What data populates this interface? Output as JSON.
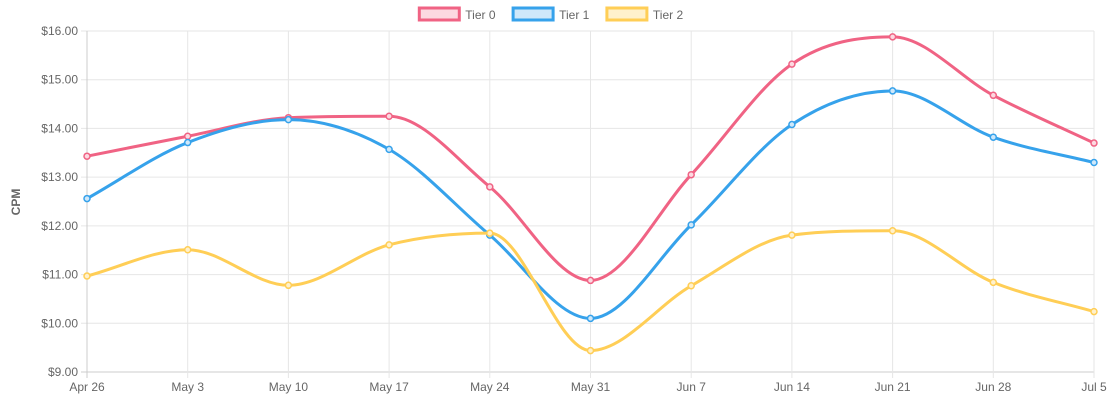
{
  "chart_data": {
    "type": "line",
    "ylabel": "CPM",
    "xlabel": "",
    "ylim": [
      9,
      16
    ],
    "y_step": 1,
    "y_prefix": "$",
    "y_decimals": 2,
    "grid": true,
    "legend_position": "top",
    "categories": [
      "Apr 26",
      "May 3",
      "May 10",
      "May 17",
      "May 24",
      "May 31",
      "Jun 7",
      "Jun 14",
      "Jun 21",
      "Jun 28",
      "Jul 5"
    ],
    "series": [
      {
        "name": "Tier 0",
        "color": "#f06384",
        "fill": "#fcd9e1",
        "values": [
          13.43,
          13.84,
          14.22,
          14.25,
          12.8,
          10.88,
          13.05,
          15.32,
          15.88,
          14.68,
          13.7
        ]
      },
      {
        "name": "Tier 1",
        "color": "#36a2eb",
        "fill": "#cfe8fa",
        "values": [
          12.56,
          13.71,
          14.18,
          13.57,
          11.81,
          10.1,
          12.02,
          14.08,
          14.77,
          13.82,
          13.3
        ]
      },
      {
        "name": "Tier 2",
        "color": "#ffce56",
        "fill": "#fff1cc",
        "values": [
          10.97,
          11.51,
          10.78,
          11.61,
          11.85,
          9.44,
          10.77,
          11.81,
          11.9,
          10.84,
          10.24
        ]
      }
    ]
  }
}
